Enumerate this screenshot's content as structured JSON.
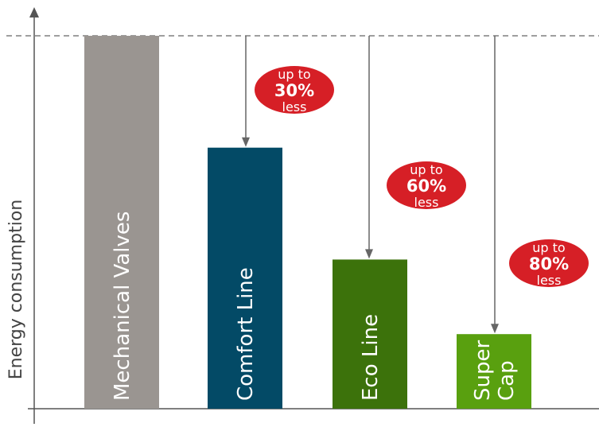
{
  "chart_data": {
    "type": "bar",
    "title": "",
    "xlabel": "",
    "ylabel": "Energy consumption",
    "ylim": [
      0,
      100
    ],
    "grid": false,
    "legend": "none",
    "reference_line": {
      "value": 100,
      "style": "dashed"
    },
    "categories": [
      {
        "lines": [
          "Mechanical Valves"
        ]
      },
      {
        "lines": [
          "Comfort Line"
        ]
      },
      {
        "lines": [
          "Eco Line"
        ]
      },
      {
        "lines": [
          "Super",
          "Cap"
        ]
      }
    ],
    "values": [
      100,
      70,
      40,
      20
    ],
    "colors": [
      "#9a9591",
      "#034a66",
      "#3c720b",
      "#59a00f"
    ],
    "savings": [
      null,
      {
        "line1": "up to",
        "value": "30%",
        "line3": "less"
      },
      {
        "line1": "up to",
        "value": "60%",
        "line3": "less"
      },
      {
        "line1": "up to",
        "value": "80%",
        "line3": "less"
      }
    ],
    "badge_color": "#d61f26",
    "axis_color": "#555555",
    "arrow_color": "#666666"
  }
}
